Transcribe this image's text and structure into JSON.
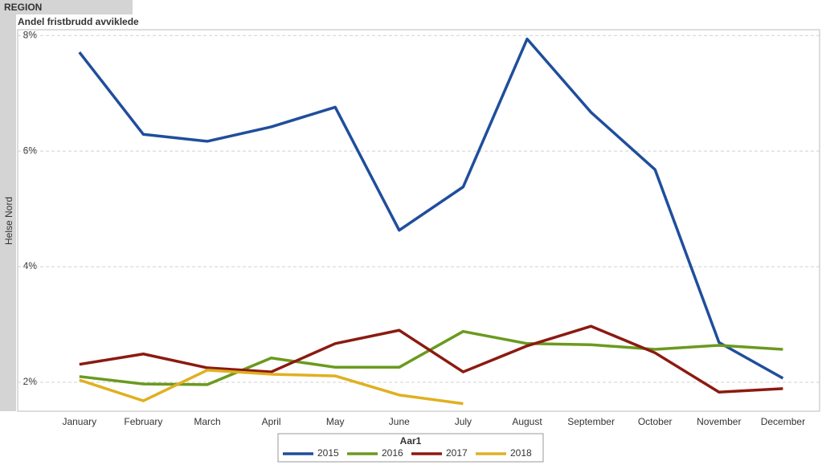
{
  "chart_data": {
    "type": "line",
    "header": "REGION",
    "title": "Andel fristbrudd avviklede",
    "row_label": "Helse Nord",
    "legend_title": "Aar1",
    "categories": [
      "January",
      "February",
      "March",
      "April",
      "May",
      "June",
      "July",
      "August",
      "September",
      "October",
      "November",
      "December"
    ],
    "series": [
      {
        "name": "2015",
        "color": "#1f4e9c",
        "values": [
          7.71,
          6.29,
          6.17,
          6.42,
          6.76,
          4.63,
          5.38,
          7.94,
          6.67,
          5.68,
          2.69,
          2.07
        ]
      },
      {
        "name": "2016",
        "color": "#6a9a1f",
        "values": [
          2.1,
          1.97,
          1.96,
          2.42,
          2.26,
          2.26,
          2.88,
          2.67,
          2.65,
          2.57,
          2.64,
          2.57
        ]
      },
      {
        "name": "2017",
        "color": "#8b1a10",
        "values": [
          2.31,
          2.49,
          2.25,
          2.18,
          2.67,
          2.9,
          2.18,
          2.63,
          2.97,
          2.51,
          1.83,
          1.89
        ]
      },
      {
        "name": "2018",
        "color": "#e0b020",
        "values": [
          2.04,
          1.68,
          2.21,
          2.14,
          2.11,
          1.78,
          1.63,
          null,
          null,
          null,
          null,
          null
        ]
      }
    ],
    "ylim": [
      1.5,
      8.1
    ],
    "yticks": [
      {
        "value": 2,
        "label": "2%"
      },
      {
        "value": 4,
        "label": "4%"
      },
      {
        "value": 6,
        "label": "6%"
      },
      {
        "value": 8,
        "label": "8%"
      }
    ],
    "grid": true
  }
}
